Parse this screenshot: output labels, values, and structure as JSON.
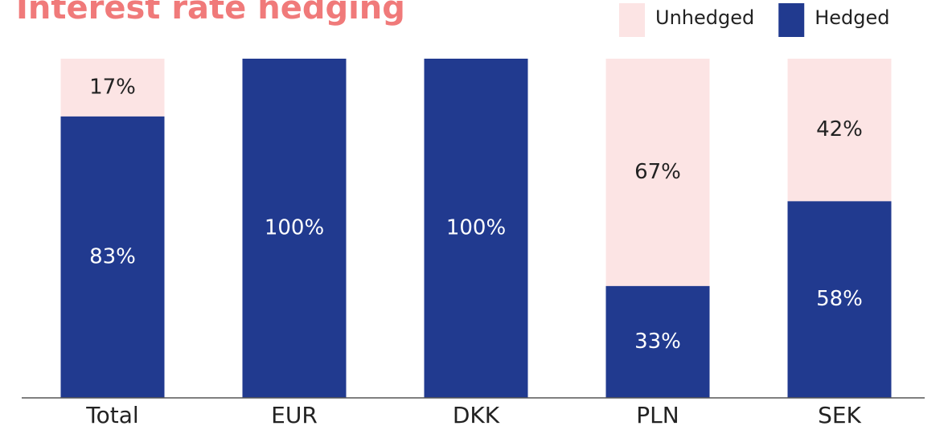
{
  "chart_data": {
    "type": "stacked_bar",
    "title": "Interest rate hedging",
    "categories": [
      "Total",
      "EUR",
      "DKK",
      "PLN",
      "SEK"
    ],
    "series": [
      {
        "name": "Unhedged",
        "color": "#fce4e4",
        "values": [
          17,
          0,
          0,
          67,
          42
        ],
        "value_labels": [
          "17%",
          null,
          null,
          "67%",
          "42%"
        ]
      },
      {
        "name": "Hedged",
        "color": "#213a8f",
        "values": [
          83,
          100,
          100,
          33,
          58
        ],
        "value_labels": [
          "83%",
          "100%",
          "100%",
          "33%",
          "58%"
        ]
      }
    ],
    "ylim": [
      0,
      100
    ],
    "grid": false,
    "legend": "top-right"
  }
}
